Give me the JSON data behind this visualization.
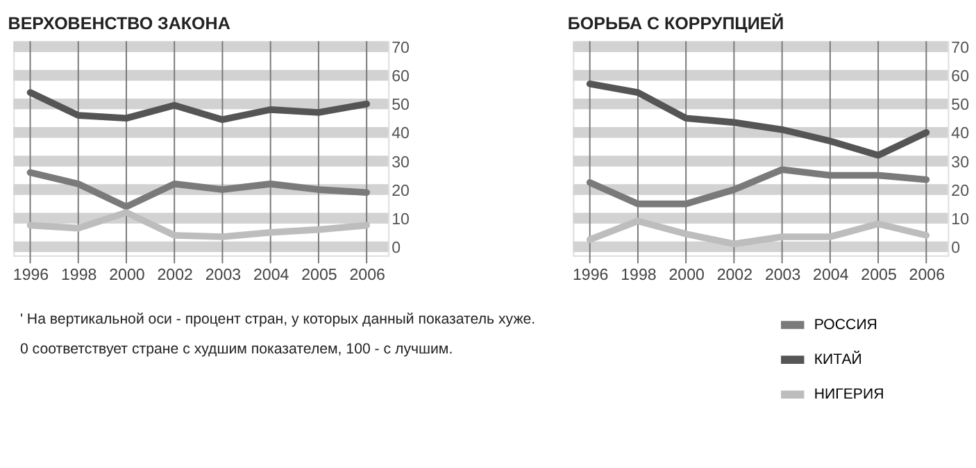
{
  "chart_data": [
    {
      "type": "line",
      "title": "ВЕРХОВЕНСТВО ЗАКОНА",
      "categories": [
        "1996",
        "1998",
        "2000",
        "2002",
        "2003",
        "2004",
        "2005",
        "2006"
      ],
      "ylim": [
        -3,
        72
      ],
      "yticks": [
        0,
        10,
        20,
        30,
        40,
        50,
        60,
        70
      ],
      "grid": true,
      "legend": "bottom right",
      "line_style": "solid",
      "marker": "none",
      "series": [
        {
          "name": "РОССИЯ",
          "color": "#7a7a7a",
          "values": [
            26,
            22,
            14,
            22,
            20,
            22,
            20,
            19
          ]
        },
        {
          "name": "КИТАЙ",
          "color": "#555555",
          "values": [
            54,
            46,
            45,
            49.5,
            44.5,
            48,
            47,
            50
          ]
        },
        {
          "name": "НИГЕРИЯ",
          "color": "#bdbdbd",
          "values": [
            7.5,
            6.5,
            12,
            4,
            3.5,
            5,
            6,
            7.5
          ]
        }
      ],
      "annotations": [
        "' На вертикальной оси - процент стран, у которых данный показатель хуже.",
        "0 соответствует стране с худшим показателем, 100 - с лучшим."
      ]
    },
    {
      "type": "line",
      "title": "БОРЬБА С КОРРУПЦИЕЙ",
      "categories": [
        "1996",
        "1998",
        "2000",
        "2002",
        "2003",
        "2004",
        "2005",
        "2006"
      ],
      "ylim": [
        -3,
        72
      ],
      "yticks": [
        0,
        10,
        20,
        30,
        40,
        50,
        60,
        70
      ],
      "grid": true,
      "legend": "bottom right",
      "line_style": "solid",
      "marker": "none",
      "series": [
        {
          "name": "РОССИЯ",
          "color": "#7a7a7a",
          "values": [
            22.5,
            15,
            15,
            20,
            27,
            25,
            25,
            23.5
          ]
        },
        {
          "name": "КИТАЙ",
          "color": "#555555",
          "values": [
            57,
            54,
            45,
            43.5,
            41,
            37,
            32,
            40
          ]
        },
        {
          "name": "НИГЕРИЯ",
          "color": "#bdbdbd",
          "values": [
            2.5,
            9,
            4.5,
            1,
            3.5,
            3.5,
            8,
            4
          ]
        }
      ]
    }
  ]
}
